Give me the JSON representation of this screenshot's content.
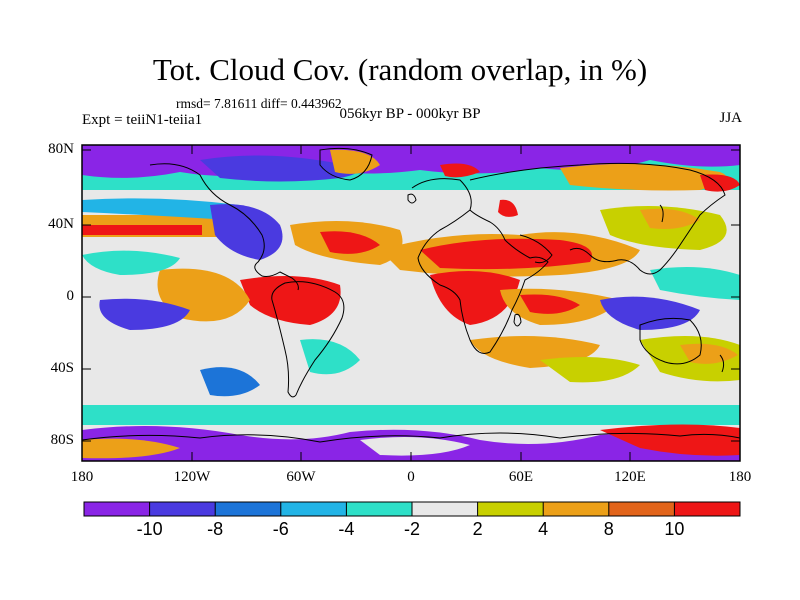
{
  "title": "Tot. Cloud Cov. (random overlap, in %)",
  "stats": "rmsd= 7.81611 diff= 0.443962",
  "experiment": "Expt = teiiN1-teiia1",
  "period": "056kyr BP - 000kyr BP",
  "season": "JJA",
  "lat_labels": [
    "80N",
    "40N",
    "0",
    "40S",
    "80S"
  ],
  "lon_labels": [
    "180",
    "120W",
    "60W",
    "0",
    "60E",
    "120E",
    "180"
  ],
  "colorbar": {
    "labels": [
      "-10",
      "-8",
      "-6",
      "-4",
      "-2",
      "2",
      "4",
      "8",
      "10"
    ],
    "colors": [
      "#8a25e6",
      "#4a3ae0",
      "#1c74d8",
      "#22b4e6",
      "#2ee0c8",
      "#e8e8e8",
      "#c8d000",
      "#eca018",
      "#e2641a",
      "#ee1616"
    ]
  }
}
